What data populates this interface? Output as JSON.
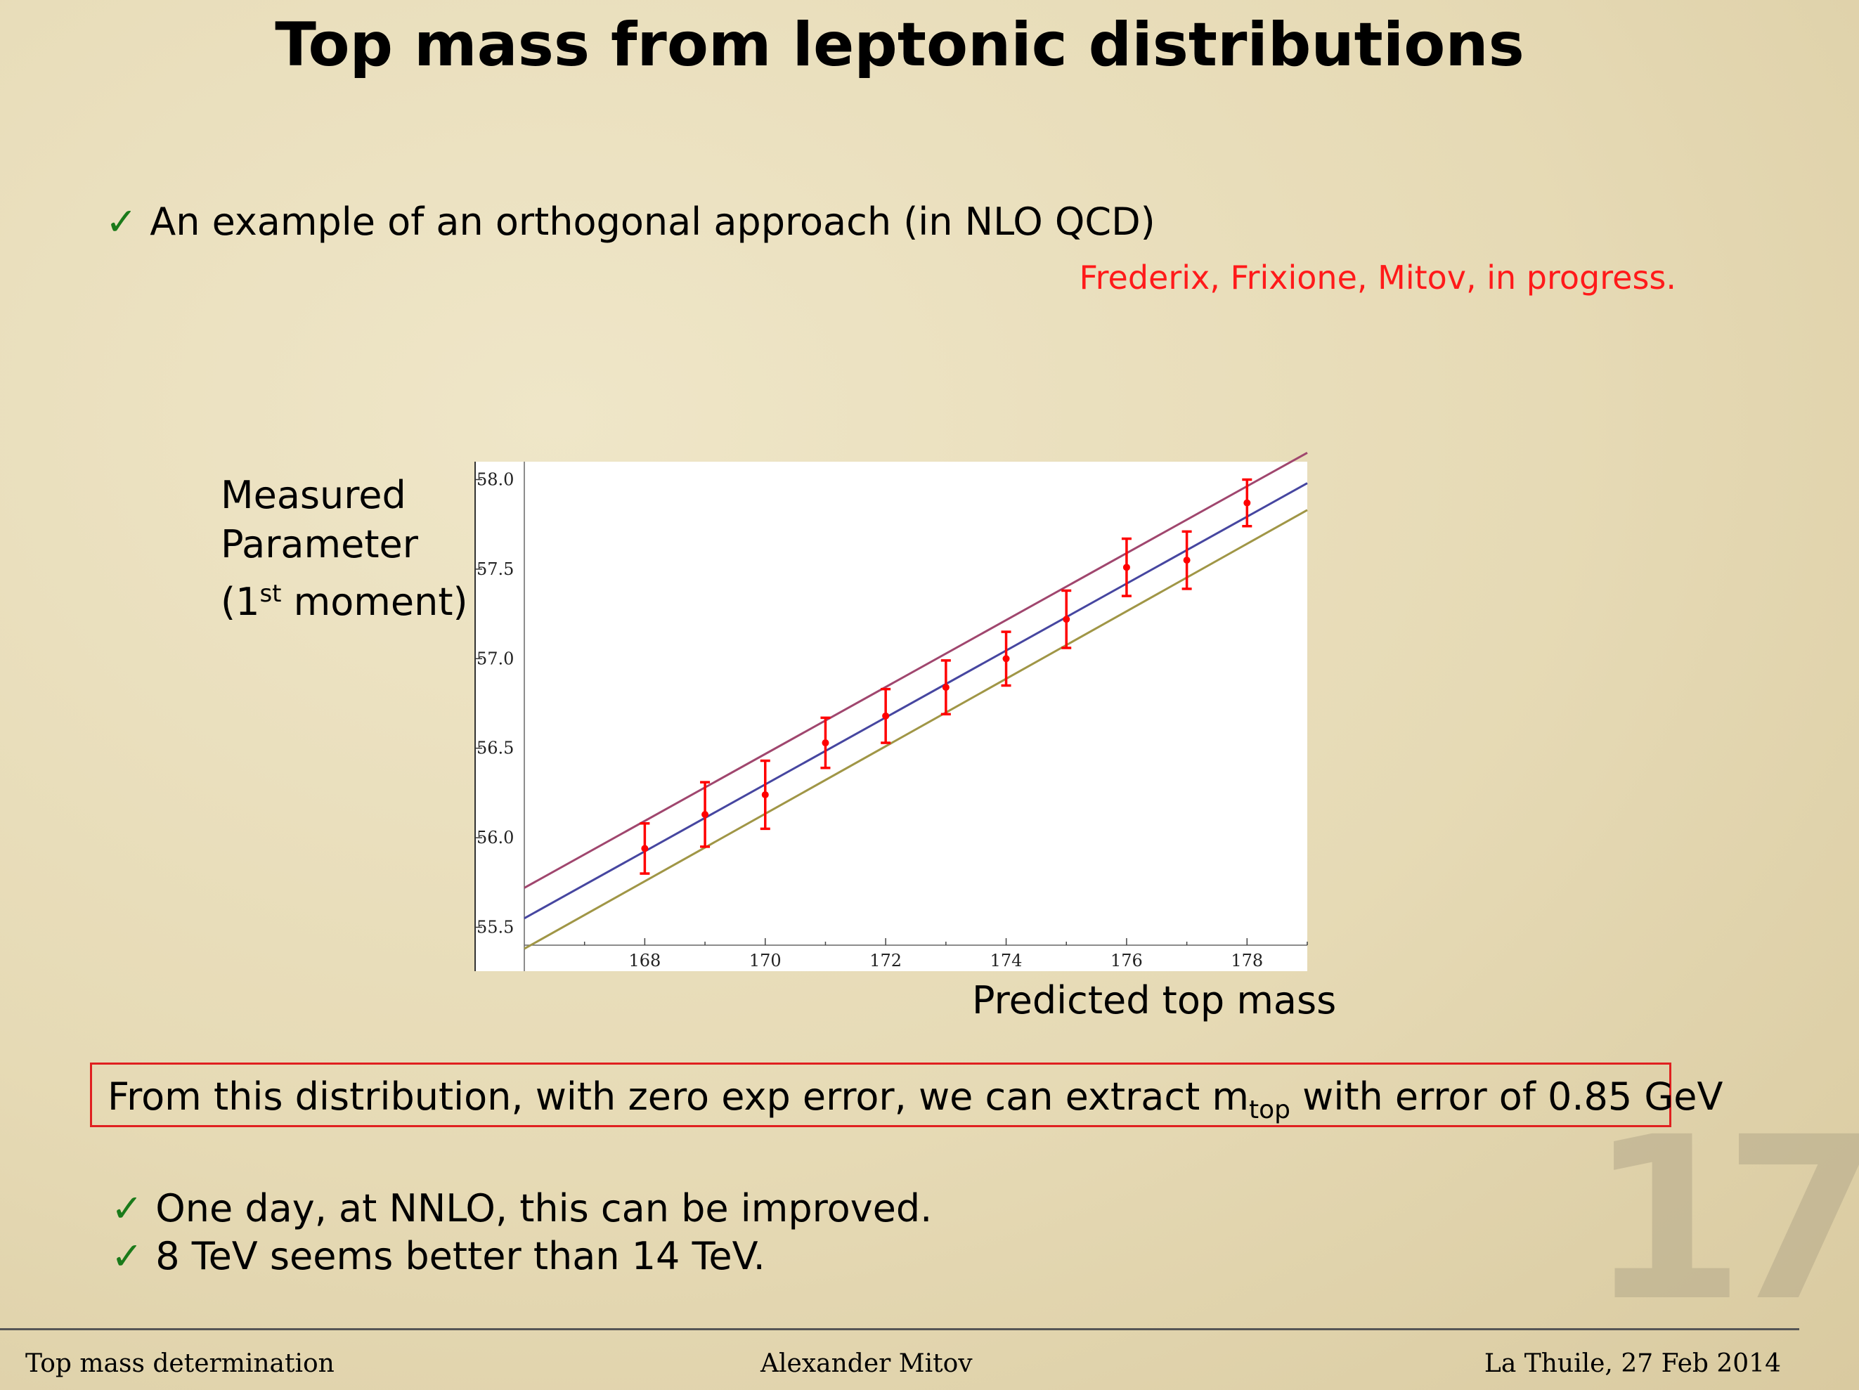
{
  "slide": {
    "title": "Top mass from leptonic distributions",
    "bullet1": "An example of an orthogonal approach (in NLO QCD)",
    "reference": "Frederix, Frixione, Mitov, in progress.",
    "check_symbol": "✓",
    "box_text_pre": "From this distribution, with zero exp error, we can extract m",
    "box_text_sub": "top",
    "box_text_post": " with error of 0.85 GeV",
    "bullet2": "One day, at NNLO, this can be improved.",
    "bullet3": "8 TeV seems better than 14 TeV.",
    "page_number": "17"
  },
  "labels": {
    "y_line1": "Measured",
    "y_line2": "Parameter",
    "y_line3_pre": "(1",
    "y_line3_sup": "st",
    "y_line3_post": " moment)",
    "x": "Predicted top mass"
  },
  "footer": {
    "left": "Top mass determination",
    "center": "Alexander Mitov",
    "right": "La Thuile, 27 Feb 2014"
  },
  "colors": {
    "check": "#1a7a1a",
    "reference": "#ff1a1a",
    "box_border": "#e02020",
    "points": "#ff0000",
    "line_upper": "#a0466e",
    "line_mid": "#4646a0",
    "line_lower": "#a09646"
  },
  "chart_data": {
    "type": "scatter",
    "xlim": [
      166,
      179
    ],
    "ylim": [
      55.4,
      58.1
    ],
    "xticks": [
      168,
      170,
      172,
      174,
      176,
      178
    ],
    "yticks": [
      55.5,
      56.0,
      56.5,
      57.0,
      57.5,
      58.0
    ],
    "xtick_labels": [
      "168",
      "170",
      "172",
      "174",
      "176",
      "178"
    ],
    "ytick_labels": [
      "55.5",
      "56.0",
      "56.5",
      "57.0",
      "57.5",
      "58.0"
    ],
    "points": [
      {
        "x": 168,
        "y": 55.94,
        "err": 0.14
      },
      {
        "x": 169,
        "y": 56.13,
        "err": 0.18
      },
      {
        "x": 170,
        "y": 56.24,
        "err": 0.19
      },
      {
        "x": 171,
        "y": 56.53,
        "err": 0.14
      },
      {
        "x": 172,
        "y": 56.68,
        "err": 0.15
      },
      {
        "x": 173,
        "y": 56.84,
        "err": 0.15
      },
      {
        "x": 174,
        "y": 57.0,
        "err": 0.15
      },
      {
        "x": 175,
        "y": 57.22,
        "err": 0.16
      },
      {
        "x": 176,
        "y": 57.51,
        "err": 0.16
      },
      {
        "x": 177,
        "y": 57.55,
        "err": 0.16
      },
      {
        "x": 178,
        "y": 57.87,
        "err": 0.13
      }
    ],
    "lines": [
      {
        "y_at_166": 55.72,
        "y_at_179": 58.15
      },
      {
        "y_at_166": 55.55,
        "y_at_179": 57.98
      },
      {
        "y_at_166": 55.38,
        "y_at_179": 57.83
      }
    ]
  }
}
